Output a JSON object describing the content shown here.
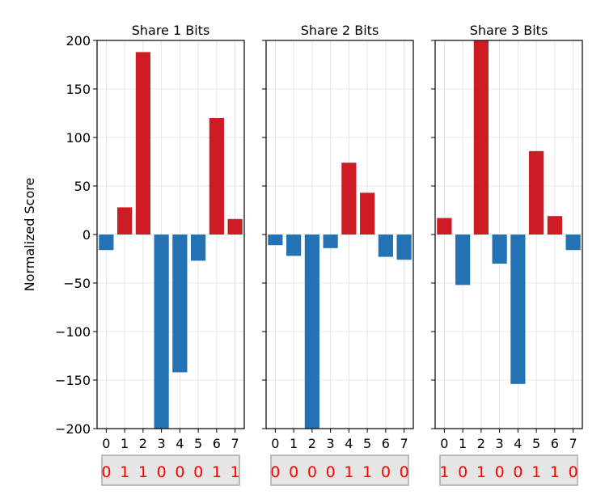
{
  "chart_data": [
    {
      "type": "bar",
      "title": "Share 1 Bits",
      "categories": [
        "0",
        "1",
        "2",
        "3",
        "4",
        "5",
        "6",
        "7"
      ],
      "values": [
        -16,
        28,
        188,
        -205,
        -142,
        -27,
        120,
        16
      ],
      "bits": [
        "0",
        "1",
        "1",
        "0",
        "0",
        "0",
        "1",
        "1"
      ],
      "xlabel": "",
      "ylabel": "Normalized Score",
      "ylim": [
        -200,
        200
      ],
      "yticks": [
        -200,
        -150,
        -100,
        -50,
        0,
        50,
        100,
        150,
        200
      ],
      "ytick_labels": [
        "−200",
        "−150",
        "−100",
        "−50",
        "0",
        "50",
        "100",
        "150",
        "200"
      ],
      "grid": true
    },
    {
      "type": "bar",
      "title": "Share 2 Bits",
      "categories": [
        "0",
        "1",
        "2",
        "3",
        "4",
        "5",
        "6",
        "7"
      ],
      "values": [
        -11,
        -22,
        -205,
        -14,
        74,
        43,
        -23,
        -26
      ],
      "bits": [
        "0",
        "0",
        "0",
        "0",
        "1",
        "1",
        "0",
        "0"
      ],
      "xlabel": "",
      "ylabel": "",
      "ylim": [
        -200,
        200
      ],
      "grid": true
    },
    {
      "type": "bar",
      "title": "Share 3 Bits",
      "categories": [
        "0",
        "1",
        "2",
        "3",
        "4",
        "5",
        "6",
        "7"
      ],
      "values": [
        17,
        -52,
        205,
        -30,
        -154,
        86,
        19,
        -16
      ],
      "bits": [
        "1",
        "0",
        "1",
        "0",
        "0",
        "1",
        "1",
        "0"
      ],
      "xlabel": "",
      "ylabel": "",
      "ylim": [
        -200,
        200
      ],
      "grid": true
    }
  ],
  "colors": {
    "positive": "#cd1c24",
    "negative": "#2272b4",
    "bit_text": "#ff0000",
    "bit_box_fill": "#e6e6e6",
    "bit_box_border": "#aaaaaa",
    "grid": "#e0e0e0"
  }
}
